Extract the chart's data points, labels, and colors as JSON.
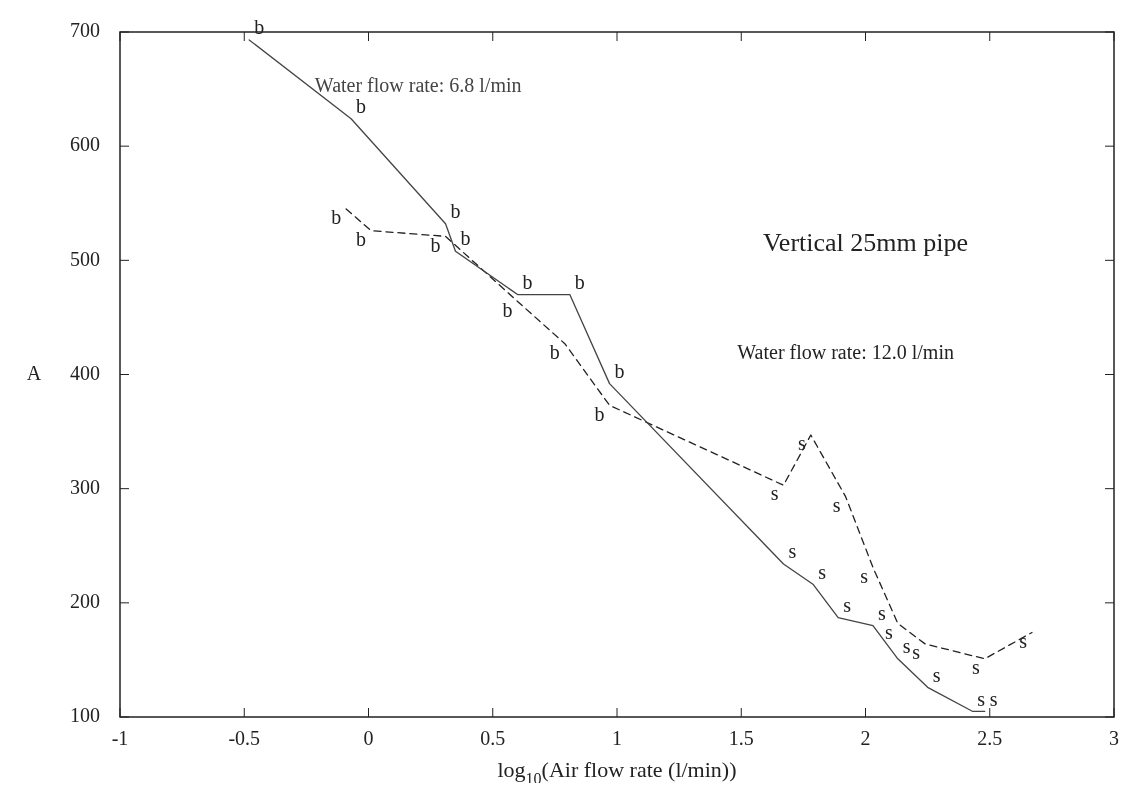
{
  "chart_data": {
    "type": "line",
    "xlabel": "log$_{10}$(Air flow rate (l/min))",
    "ylabel": "A",
    "annotations": [
      "Vertical 25mm pipe"
    ],
    "xlim": [
      -1,
      3
    ],
    "xticks": [
      -1,
      -0.5,
      0,
      0.5,
      1,
      1.5,
      2,
      2.5,
      3
    ],
    "ylim": [
      100,
      700
    ],
    "yticks": [
      100,
      200,
      300,
      400,
      500,
      600,
      700
    ],
    "grid": false,
    "marker": "none",
    "series": [
      {
        "name": "Water flow rate: 6.8 l/min",
        "color": "#444444",
        "line_style": "solid",
        "x": [
          -0.48,
          -0.07,
          0.31,
          0.35,
          0.6,
          0.81,
          0.97,
          1.67,
          1.79,
          1.89,
          2.03,
          2.13,
          2.25,
          2.43,
          2.48
        ],
        "values": [
          693,
          624,
          532,
          508,
          470,
          470,
          392,
          234,
          216,
          187,
          180,
          151,
          126,
          105,
          105
        ],
        "value_labels": [
          "b",
          "b",
          "b",
          "b",
          "b",
          "b",
          "b",
          "s",
          "s",
          "s",
          "s",
          "s",
          "s",
          "s",
          "s"
        ]
      },
      {
        "name": "Water flow rate: 12.0 l/min",
        "color": "#222222",
        "line_style": "dashed",
        "x": [
          -0.09,
          0.01,
          0.31,
          0.6,
          0.79,
          0.97,
          1.67,
          1.78,
          1.92,
          2.03,
          2.13,
          2.24,
          2.48,
          2.67
        ],
        "values": [
          545,
          526,
          521,
          464,
          427,
          373,
          303,
          347,
          293,
          231,
          182,
          164,
          151,
          174
        ],
        "value_labels": [
          "b",
          "b",
          "b",
          "b",
          "b",
          "b",
          "s",
          "s",
          "s",
          "s",
          "s",
          "s",
          "s",
          "s"
        ]
      }
    ]
  }
}
